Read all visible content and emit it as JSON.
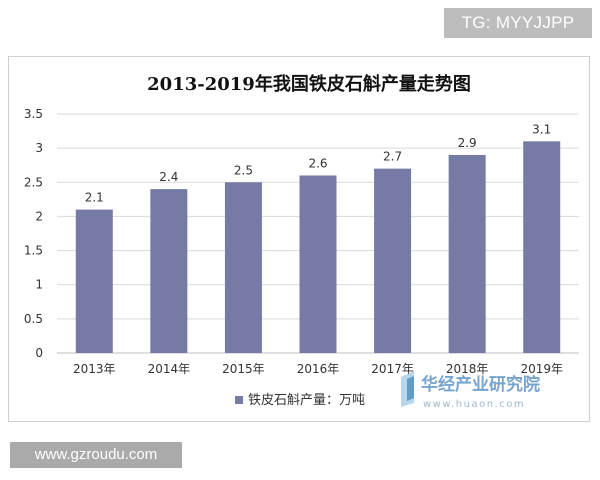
{
  "watermarks": {
    "top": "TG: MYYJJPP",
    "bottom": "www.gzroudu.com",
    "logo_cn": "华经产业研究院",
    "logo_url": "www.huaon.com"
  },
  "colors": {
    "bar": "#757ba5",
    "grid": "#d9d9d9",
    "axis_text": "#333333",
    "title": "#111111"
  },
  "chart_data": {
    "type": "bar",
    "title": "2013-2019年我国铁皮石斛产量走势图",
    "categories": [
      "2013年",
      "2014年",
      "2015年",
      "2016年",
      "2017年",
      "2018年",
      "2019年"
    ],
    "series": [
      {
        "name": "铁皮石斛产量：万吨",
        "values": [
          2.1,
          2.4,
          2.5,
          2.6,
          2.7,
          2.9,
          3.1
        ]
      }
    ],
    "data_labels": [
      "2.1",
      "2.4",
      "2.5",
      "2.6",
      "2.7",
      "2.9",
      "3.1"
    ],
    "yticks": [
      "0",
      "0.5",
      "1",
      "1.5",
      "2",
      "2.5",
      "3",
      "3.5"
    ],
    "ylim": [
      0,
      3.5
    ],
    "xlabel": "",
    "ylabel": "",
    "grid": true,
    "legend_position": "bottom"
  }
}
